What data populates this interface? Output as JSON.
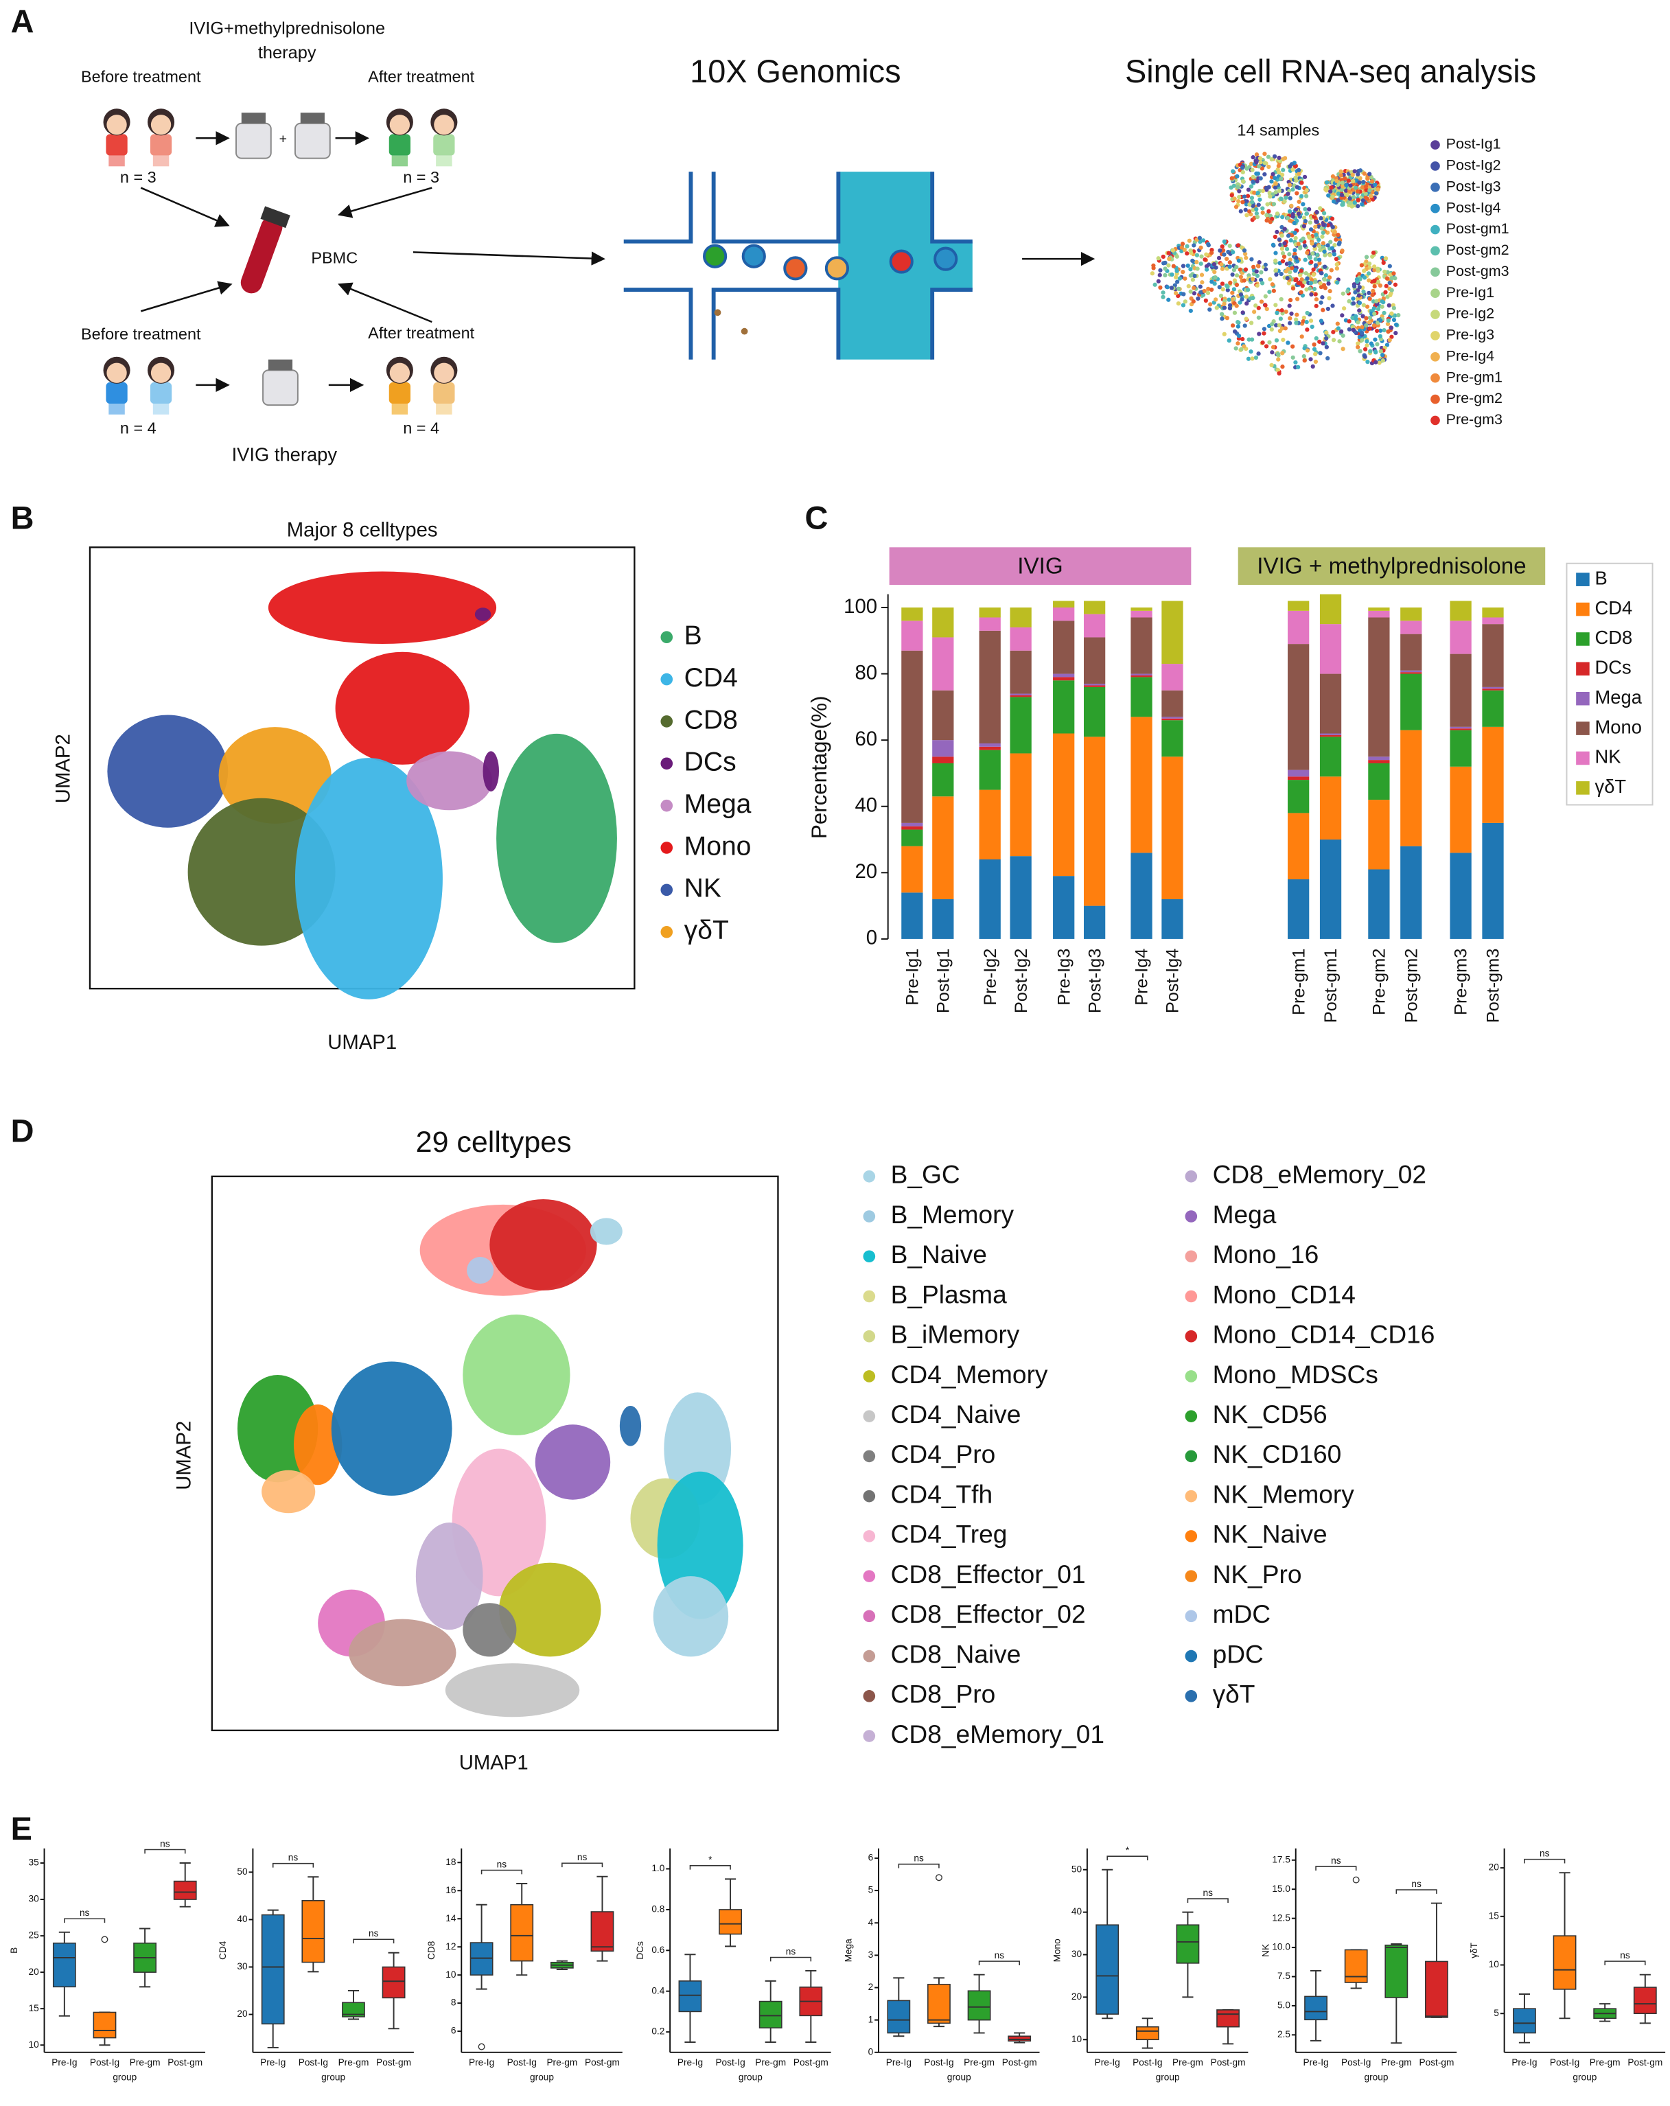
{
  "panel_labels": [
    "A",
    "B",
    "C",
    "D",
    "E"
  ],
  "panel_a": {
    "top_therapy": [
      "IVIG+methylprednisolone",
      "therapy"
    ],
    "top_before": "Before treatment",
    "top_after": "After treatment",
    "top_n_before": "n = 3",
    "top_n_after": "n = 3",
    "pbmc": "PBMC",
    "bottom_before": "Before treatment",
    "bottom_after": "After treatment",
    "bottom_n_before": "n = 4",
    "bottom_n_after": "n = 4",
    "bottom_therapy": "IVIG therapy",
    "genomics": "10X Genomics",
    "analysis": "Single cell RNA-seq analysis",
    "samples_title": "14 samples",
    "samples": [
      {
        "name": "Post-Ig1",
        "color": "#5b3f99"
      },
      {
        "name": "Post-Ig2",
        "color": "#4454a8"
      },
      {
        "name": "Post-Ig3",
        "color": "#3b6fb6"
      },
      {
        "name": "Post-Ig4",
        "color": "#2a8fc7"
      },
      {
        "name": "Post-gm1",
        "color": "#3fb0c0"
      },
      {
        "name": "Post-gm2",
        "color": "#5cbfae"
      },
      {
        "name": "Post-gm3",
        "color": "#86c99a"
      },
      {
        "name": "Pre-Ig1",
        "color": "#a8d48a"
      },
      {
        "name": "Pre-Ig2",
        "color": "#c6d97a"
      },
      {
        "name": "Pre-Ig3",
        "color": "#e0d46a"
      },
      {
        "name": "Pre-Ig4",
        "color": "#f0b050"
      },
      {
        "name": "Pre-gm1",
        "color": "#f08a3c"
      },
      {
        "name": "Pre-gm2",
        "color": "#e8602c"
      },
      {
        "name": "Pre-gm3",
        "color": "#e0302a"
      }
    ]
  },
  "panel_b": {
    "title": "Major 8 celltypes",
    "xlabel": "UMAP1",
    "ylabel": "UMAP2",
    "legend": [
      {
        "name": "B",
        "color": "#3aaa6a"
      },
      {
        "name": "CD4",
        "color": "#3db5e6"
      },
      {
        "name": "CD8",
        "color": "#556b2f"
      },
      {
        "name": "DCs",
        "color": "#6a1b7a"
      },
      {
        "name": "Mega",
        "color": "#c48bc4"
      },
      {
        "name": "Mono",
        "color": "#e41a1c"
      },
      {
        "name": "NK",
        "color": "#3a5aa8"
      },
      {
        "name": "γδT",
        "color": "#f0a020"
      }
    ]
  },
  "panel_d": {
    "title": "29 celltypes",
    "xlabel": "UMAP1",
    "ylabel": "UMAP2",
    "legend": [
      {
        "name": "B_GC",
        "color": "#a9d5e6"
      },
      {
        "name": "B_Memory",
        "color": "#9ecae1"
      },
      {
        "name": "B_Naive",
        "color": "#17becf"
      },
      {
        "name": "B_Plasma",
        "color": "#dbdb8d"
      },
      {
        "name": "B_iMemory",
        "color": "#d2d88a"
      },
      {
        "name": "CD4_Memory",
        "color": "#bcbd22"
      },
      {
        "name": "CD4_Naive",
        "color": "#c7c7c7"
      },
      {
        "name": "CD4_Pro",
        "color": "#7f7f7f"
      },
      {
        "name": "CD4_Tfh",
        "color": "#737373"
      },
      {
        "name": "CD4_Treg",
        "color": "#f7b6d2"
      },
      {
        "name": "CD8_Effector_01",
        "color": "#e377c2"
      },
      {
        "name": "CD8_Effector_02",
        "color": "#d770b8"
      },
      {
        "name": "CD8_Naive",
        "color": "#c49c94"
      },
      {
        "name": "CD8_Pro",
        "color": "#8c564b"
      },
      {
        "name": "CD8_eMemory_01",
        "color": "#c5b0d5"
      },
      {
        "name": "CD8_eMemory_02",
        "color": "#bba8d0"
      },
      {
        "name": "Mega",
        "color": "#9467bd"
      },
      {
        "name": "Mono_16",
        "color": "#f4a09c"
      },
      {
        "name": "Mono_CD14",
        "color": "#ff9896"
      },
      {
        "name": "Mono_CD14_CD16",
        "color": "#d62728"
      },
      {
        "name": "Mono_MDSCs",
        "color": "#98df8a"
      },
      {
        "name": "NK_CD56",
        "color": "#2ca02c"
      },
      {
        "name": "NK_CD160",
        "color": "#279a3a"
      },
      {
        "name": "NK_Memory",
        "color": "#ffbb78"
      },
      {
        "name": "NK_Naive",
        "color": "#ff7f0e"
      },
      {
        "name": "NK_Pro",
        "color": "#f5871a"
      },
      {
        "name": "mDC",
        "color": "#aec7e8"
      },
      {
        "name": "pDC",
        "color": "#1f77b4"
      },
      {
        "name": "γδT",
        "color": "#2a6fae"
      }
    ]
  },
  "chart_data": [
    {
      "type": "stacked_bar",
      "ylabel": "Percentage(%)",
      "group_labels": [
        "IVIG",
        "IVIG + methylprednisolone"
      ],
      "categories": [
        "Pre-Ig1",
        "Post-Ig1",
        "Pre-Ig2",
        "Post-Ig2",
        "Pre-Ig3",
        "Post-Ig3",
        "Pre-Ig4",
        "Post-Ig4",
        "Pre-gm1",
        "Post-gm1",
        "Pre-gm2",
        "Post-gm2",
        "Pre-gm3",
        "Post-gm3"
      ],
      "ylim": [
        0,
        104
      ],
      "yticks": [
        0,
        20,
        40,
        60,
        80,
        100
      ],
      "series": [
        {
          "name": "B",
          "color": "#1f77b4",
          "values": [
            14,
            12,
            24,
            25,
            19,
            10,
            26,
            12,
            18,
            30,
            21,
            28,
            26,
            35
          ]
        },
        {
          "name": "CD4",
          "color": "#ff7f0e",
          "values": [
            14,
            31,
            21,
            31,
            43,
            51,
            41,
            43,
            20,
            19,
            21,
            35,
            26,
            29
          ]
        },
        {
          "name": "CD8",
          "color": "#2ca02c",
          "values": [
            5,
            10,
            12,
            17,
            16,
            15,
            12,
            11,
            10,
            12,
            11,
            17,
            11,
            11
          ]
        },
        {
          "name": "DCs",
          "color": "#d62728",
          "values": [
            1,
            2,
            1,
            0.5,
            1,
            0.5,
            0.5,
            0.5,
            1,
            0.5,
            1,
            0.5,
            0.5,
            0.5
          ]
        },
        {
          "name": "Mega",
          "color": "#9467bd",
          "values": [
            1,
            5,
            1,
            0.5,
            1,
            0.5,
            0.5,
            0.5,
            2,
            0.5,
            1,
            0.5,
            0.5,
            0.5
          ]
        },
        {
          "name": "Mono",
          "color": "#8c564b",
          "values": [
            52,
            15,
            34,
            13,
            16,
            14,
            17,
            8,
            38,
            18,
            42,
            11,
            22,
            19
          ]
        },
        {
          "name": "NK",
          "color": "#e377c2",
          "values": [
            9,
            16,
            4,
            7,
            4,
            7,
            2,
            8,
            10,
            15,
            2,
            4,
            10,
            2
          ]
        },
        {
          "name": "γδT",
          "color": "#bcbd22",
          "values": [
            4,
            9,
            3,
            6,
            2,
            4,
            1,
            19,
            3,
            9,
            1,
            4,
            6,
            3
          ]
        }
      ]
    },
    {
      "type": "box",
      "ylabel": "B",
      "xlabel": "group",
      "categories": [
        "Pre-Ig",
        "Post-Ig",
        "Pre-gm",
        "Post-gm"
      ],
      "colors": [
        "#1f77b4",
        "#ff7f0e",
        "#2ca02c",
        "#d62728"
      ],
      "ylim": [
        9,
        37
      ],
      "yticks": [
        10,
        15,
        20,
        25,
        30,
        35
      ],
      "annotations": [
        "ns",
        "ns"
      ],
      "boxes": [
        {
          "whislo": 14,
          "q1": 18,
          "med": 22,
          "q3": 24,
          "whishi": 25.5
        },
        {
          "whislo": 10,
          "q1": 11,
          "med": 12,
          "q3": 14.5,
          "whishi": 14.5,
          "outliers": [
            24.5
          ]
        },
        {
          "whislo": 18,
          "q1": 20,
          "med": 22,
          "q3": 24,
          "whishi": 26
        },
        {
          "whislo": 29,
          "q1": 30,
          "med": 31,
          "q3": 32.5,
          "whishi": 35
        }
      ]
    },
    {
      "type": "box",
      "ylabel": "CD4",
      "xlabel": "group",
      "categories": [
        "Pre-Ig",
        "Post-Ig",
        "Pre-gm",
        "Post-gm"
      ],
      "colors": [
        "#1f77b4",
        "#ff7f0e",
        "#2ca02c",
        "#d62728"
      ],
      "ylim": [
        12,
        55
      ],
      "yticks": [
        20,
        30,
        40,
        50
      ],
      "annotations": [
        "ns",
        "ns"
      ],
      "boxes": [
        {
          "whislo": 13,
          "q1": 18,
          "med": 30,
          "q3": 41,
          "whishi": 42
        },
        {
          "whislo": 29,
          "q1": 31,
          "med": 36,
          "q3": 44,
          "whishi": 49
        },
        {
          "whislo": 19,
          "q1": 19.5,
          "med": 20,
          "q3": 22.5,
          "whishi": 25
        },
        {
          "whislo": 17,
          "q1": 23.5,
          "med": 27,
          "q3": 30,
          "whishi": 33
        }
      ]
    },
    {
      "type": "box",
      "ylabel": "CD8",
      "xlabel": "group",
      "categories": [
        "Pre-Ig",
        "Post-Ig",
        "Pre-gm",
        "Post-gm"
      ],
      "colors": [
        "#1f77b4",
        "#ff7f0e",
        "#2ca02c",
        "#d62728"
      ],
      "ylim": [
        4.5,
        19
      ],
      "yticks": [
        6,
        8,
        10,
        12,
        14,
        16,
        18
      ],
      "annotations": [
        "ns",
        "ns"
      ],
      "boxes": [
        {
          "whislo": 9,
          "q1": 10,
          "med": 11.2,
          "q3": 12.3,
          "whishi": 15,
          "outliers": [
            4.9
          ]
        },
        {
          "whislo": 10,
          "q1": 11,
          "med": 12.8,
          "q3": 15,
          "whishi": 16.5
        },
        {
          "whislo": 10.4,
          "q1": 10.5,
          "med": 10.7,
          "q3": 10.9,
          "whishi": 11
        },
        {
          "whislo": 11,
          "q1": 11.7,
          "med": 12,
          "q3": 14.5,
          "whishi": 17
        }
      ]
    },
    {
      "type": "box",
      "ylabel": "DCs",
      "xlabel": "group",
      "categories": [
        "Pre-Ig",
        "Post-Ig",
        "Pre-gm",
        "Post-gm"
      ],
      "colors": [
        "#1f77b4",
        "#ff7f0e",
        "#2ca02c",
        "#d62728"
      ],
      "ylim": [
        0.1,
        1.1
      ],
      "yticks": [
        0.2,
        0.4,
        0.6,
        0.8,
        {
          "value": 1,
          "label": "1.0"
        }
      ],
      "annotations": [
        "*",
        "ns"
      ],
      "boxes": [
        {
          "whislo": 0.15,
          "q1": 0.3,
          "med": 0.38,
          "q3": 0.45,
          "whishi": 0.58
        },
        {
          "whislo": 0.62,
          "q1": 0.68,
          "med": 0.73,
          "q3": 0.8,
          "whishi": 0.95
        },
        {
          "whislo": 0.15,
          "q1": 0.22,
          "med": 0.28,
          "q3": 0.35,
          "whishi": 0.45
        },
        {
          "whislo": 0.15,
          "q1": 0.28,
          "med": 0.35,
          "q3": 0.42,
          "whishi": 0.5
        }
      ]
    },
    {
      "type": "box",
      "ylabel": "Mega",
      "xlabel": "group",
      "categories": [
        "Pre-Ig",
        "Post-Ig",
        "Pre-gm",
        "Post-gm"
      ],
      "colors": [
        "#1f77b4",
        "#ff7f0e",
        "#2ca02c",
        "#d62728"
      ],
      "ylim": [
        0,
        6.3
      ],
      "yticks": [
        0,
        1,
        2,
        3,
        4,
        5,
        6
      ],
      "annotations": [
        "ns",
        "ns"
      ],
      "boxes": [
        {
          "whislo": 0.5,
          "q1": 0.6,
          "med": 1,
          "q3": 1.6,
          "whishi": 2.3
        },
        {
          "whislo": 0.8,
          "q1": 0.9,
          "med": 1,
          "q3": 2.1,
          "whishi": 2.3,
          "outliers": [
            5.4
          ]
        },
        {
          "whislo": 0.6,
          "q1": 1,
          "med": 1.4,
          "q3": 1.9,
          "whishi": 2.4
        },
        {
          "whislo": 0.3,
          "q1": 0.35,
          "med": 0.4,
          "q3": 0.5,
          "whishi": 0.6
        }
      ]
    },
    {
      "type": "box",
      "ylabel": "Mono",
      "xlabel": "group",
      "categories": [
        "Pre-Ig",
        "Post-Ig",
        "Pre-gm",
        "Post-gm"
      ],
      "colors": [
        "#1f77b4",
        "#ff7f0e",
        "#2ca02c",
        "#d62728"
      ],
      "ylim": [
        7,
        55
      ],
      "yticks": [
        10,
        20,
        30,
        40,
        50
      ],
      "annotations": [
        "*",
        "ns"
      ],
      "boxes": [
        {
          "whislo": 15,
          "q1": 16,
          "med": 25,
          "q3": 37,
          "whishi": 50
        },
        {
          "whislo": 8,
          "q1": 10,
          "med": 12,
          "q3": 13,
          "whishi": 15
        },
        {
          "whislo": 20,
          "q1": 28,
          "med": 33,
          "q3": 37,
          "whishi": 40
        },
        {
          "whislo": 9,
          "q1": 13,
          "med": 16,
          "q3": 17,
          "whishi": 17
        }
      ]
    },
    {
      "type": "box",
      "ylabel": "NK",
      "xlabel": "group",
      "categories": [
        "Pre-Ig",
        "Post-Ig",
        "Pre-gm",
        "Post-gm"
      ],
      "colors": [
        "#1f77b4",
        "#ff7f0e",
        "#2ca02c",
        "#d62728"
      ],
      "ylim": [
        1,
        18.5
      ],
      "yticks": [
        2.5,
        {
          "value": 5,
          "label": "5.0"
        },
        7.5,
        {
          "value": 10,
          "label": "10.0"
        },
        12.5,
        {
          "value": 15,
          "label": "15.0"
        },
        17.5
      ],
      "annotations": [
        "ns",
        "ns"
      ],
      "boxes": [
        {
          "whislo": 2,
          "q1": 3.8,
          "med": 4.5,
          "q3": 5.8,
          "whishi": 8
        },
        {
          "whislo": 6.5,
          "q1": 7,
          "med": 7.5,
          "q3": 9.8,
          "whishi": 9.8,
          "outliers": [
            15.8
          ]
        },
        {
          "whislo": 1.8,
          "q1": 5.7,
          "med": 10,
          "q3": 10.2,
          "whishi": 10.3
        },
        {
          "whislo": 4,
          "q1": 4,
          "med": 4.1,
          "q3": 8.8,
          "whishi": 13.8
        }
      ]
    },
    {
      "type": "box",
      "ylabel": "γδT",
      "xlabel": "group",
      "categories": [
        "Pre-Ig",
        "Post-Ig",
        "Pre-gm",
        "Post-gm"
      ],
      "colors": [
        "#1f77b4",
        "#ff7f0e",
        "#2ca02c",
        "#d62728"
      ],
      "ylim": [
        1,
        22
      ],
      "yticks": [
        5,
        10,
        15,
        20
      ],
      "annotations": [
        "ns",
        "ns"
      ],
      "boxes": [
        {
          "whislo": 2,
          "q1": 3,
          "med": 4,
          "q3": 5.5,
          "whishi": 7
        },
        {
          "whislo": 4.5,
          "q1": 7.5,
          "med": 9.5,
          "q3": 13,
          "whishi": 19.5
        },
        {
          "whislo": 4.2,
          "q1": 4.5,
          "med": 5,
          "q3": 5.5,
          "whishi": 6
        },
        {
          "whislo": 4,
          "q1": 5,
          "med": 6,
          "q3": 7.7,
          "whishi": 9
        }
      ]
    }
  ]
}
